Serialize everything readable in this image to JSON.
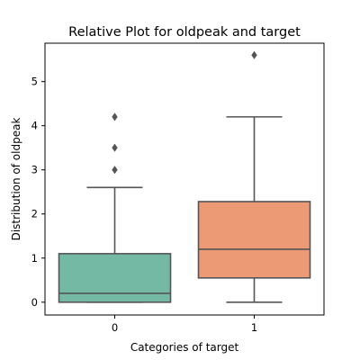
{
  "chart_data": {
    "type": "box",
    "title": "Relative Plot for oldpeak and target",
    "xlabel": "Categories of target",
    "ylabel": "Distribution of oldpeak",
    "categories": [
      "0",
      "1"
    ],
    "ylim": [
      -0.29,
      5.87
    ],
    "yticks": [
      "0",
      "1",
      "2",
      "3",
      "4",
      "5"
    ],
    "grid": false,
    "boxes": [
      {
        "category": "0",
        "whisker_low": 0.0,
        "q1": 0.0,
        "median": 0.2,
        "q3": 1.1,
        "whisker_high": 2.6,
        "outliers": [
          3.0,
          3.5,
          4.2
        ],
        "color": "#74b9a3"
      },
      {
        "category": "1",
        "whisker_low": 0.0,
        "q1": 0.55,
        "median": 1.2,
        "q3": 2.28,
        "whisker_high": 4.2,
        "outliers": [
          5.6
        ],
        "color": "#ec9a75"
      }
    ],
    "line_color": "#555555"
  }
}
